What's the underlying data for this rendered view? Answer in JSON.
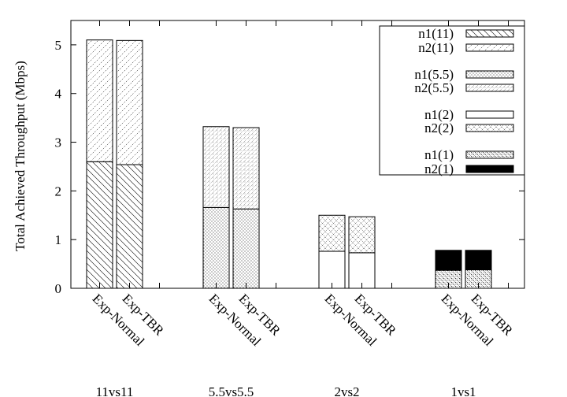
{
  "chart_data": {
    "type": "bar",
    "stacked": true,
    "title": "",
    "xlabel": "",
    "ylabel": "Total Achieved Throughput (Mbps)",
    "ylim": [
      0,
      5.5
    ],
    "yticks": [
      0,
      1,
      2,
      3,
      4,
      5
    ],
    "grid": false,
    "legend_position": "top-right",
    "groups": [
      {
        "name": "11vs11",
        "bars": [
          {
            "label": "Exp-Normal",
            "segments": [
              {
                "series": "n1(11)",
                "value": 2.6
              },
              {
                "series": "n2(11)",
                "value": 2.5
              }
            ]
          },
          {
            "label": "Exp-TBR",
            "segments": [
              {
                "series": "n1(11)",
                "value": 2.54
              },
              {
                "series": "n2(11)",
                "value": 2.55
              }
            ]
          }
        ]
      },
      {
        "name": "5.5vs5.5",
        "bars": [
          {
            "label": "Exp-Normal",
            "segments": [
              {
                "series": "n1(5.5)",
                "value": 1.66
              },
              {
                "series": "n2(5.5)",
                "value": 1.66
              }
            ]
          },
          {
            "label": "Exp-TBR",
            "segments": [
              {
                "series": "n1(5.5)",
                "value": 1.63
              },
              {
                "series": "n2(5.5)",
                "value": 1.67
              }
            ]
          }
        ]
      },
      {
        "name": "2vs2",
        "bars": [
          {
            "label": "Exp-Normal",
            "segments": [
              {
                "series": "n1(2)",
                "value": 0.76
              },
              {
                "series": "n2(2)",
                "value": 0.74
              }
            ]
          },
          {
            "label": "Exp-TBR",
            "segments": [
              {
                "series": "n1(2)",
                "value": 0.73
              },
              {
                "series": "n2(2)",
                "value": 0.74
              }
            ]
          }
        ]
      },
      {
        "name": "1vs1",
        "bars": [
          {
            "label": "Exp-Normal",
            "segments": [
              {
                "series": "n1(1)",
                "value": 0.37
              },
              {
                "series": "n2(1)",
                "value": 0.41
              }
            ]
          },
          {
            "label": "Exp-TBR",
            "segments": [
              {
                "series": "n1(1)",
                "value": 0.38
              },
              {
                "series": "n2(1)",
                "value": 0.4
              }
            ]
          }
        ]
      }
    ],
    "legend": [
      {
        "name": "n1(11)",
        "pattern": "diag-back-dense"
      },
      {
        "name": "n2(11)",
        "pattern": "diag-fwd-dashed"
      },
      {
        "name": "n1(5.5)",
        "pattern": "dots-dense"
      },
      {
        "name": "n2(5.5)",
        "pattern": "dots-fine"
      },
      {
        "name": "n1(2)",
        "pattern": "empty"
      },
      {
        "name": "n2(2)",
        "pattern": "crosshatch"
      },
      {
        "name": "n1(1)",
        "pattern": "dots-medium"
      },
      {
        "name": "n2(1)",
        "pattern": "solid-black"
      }
    ]
  }
}
